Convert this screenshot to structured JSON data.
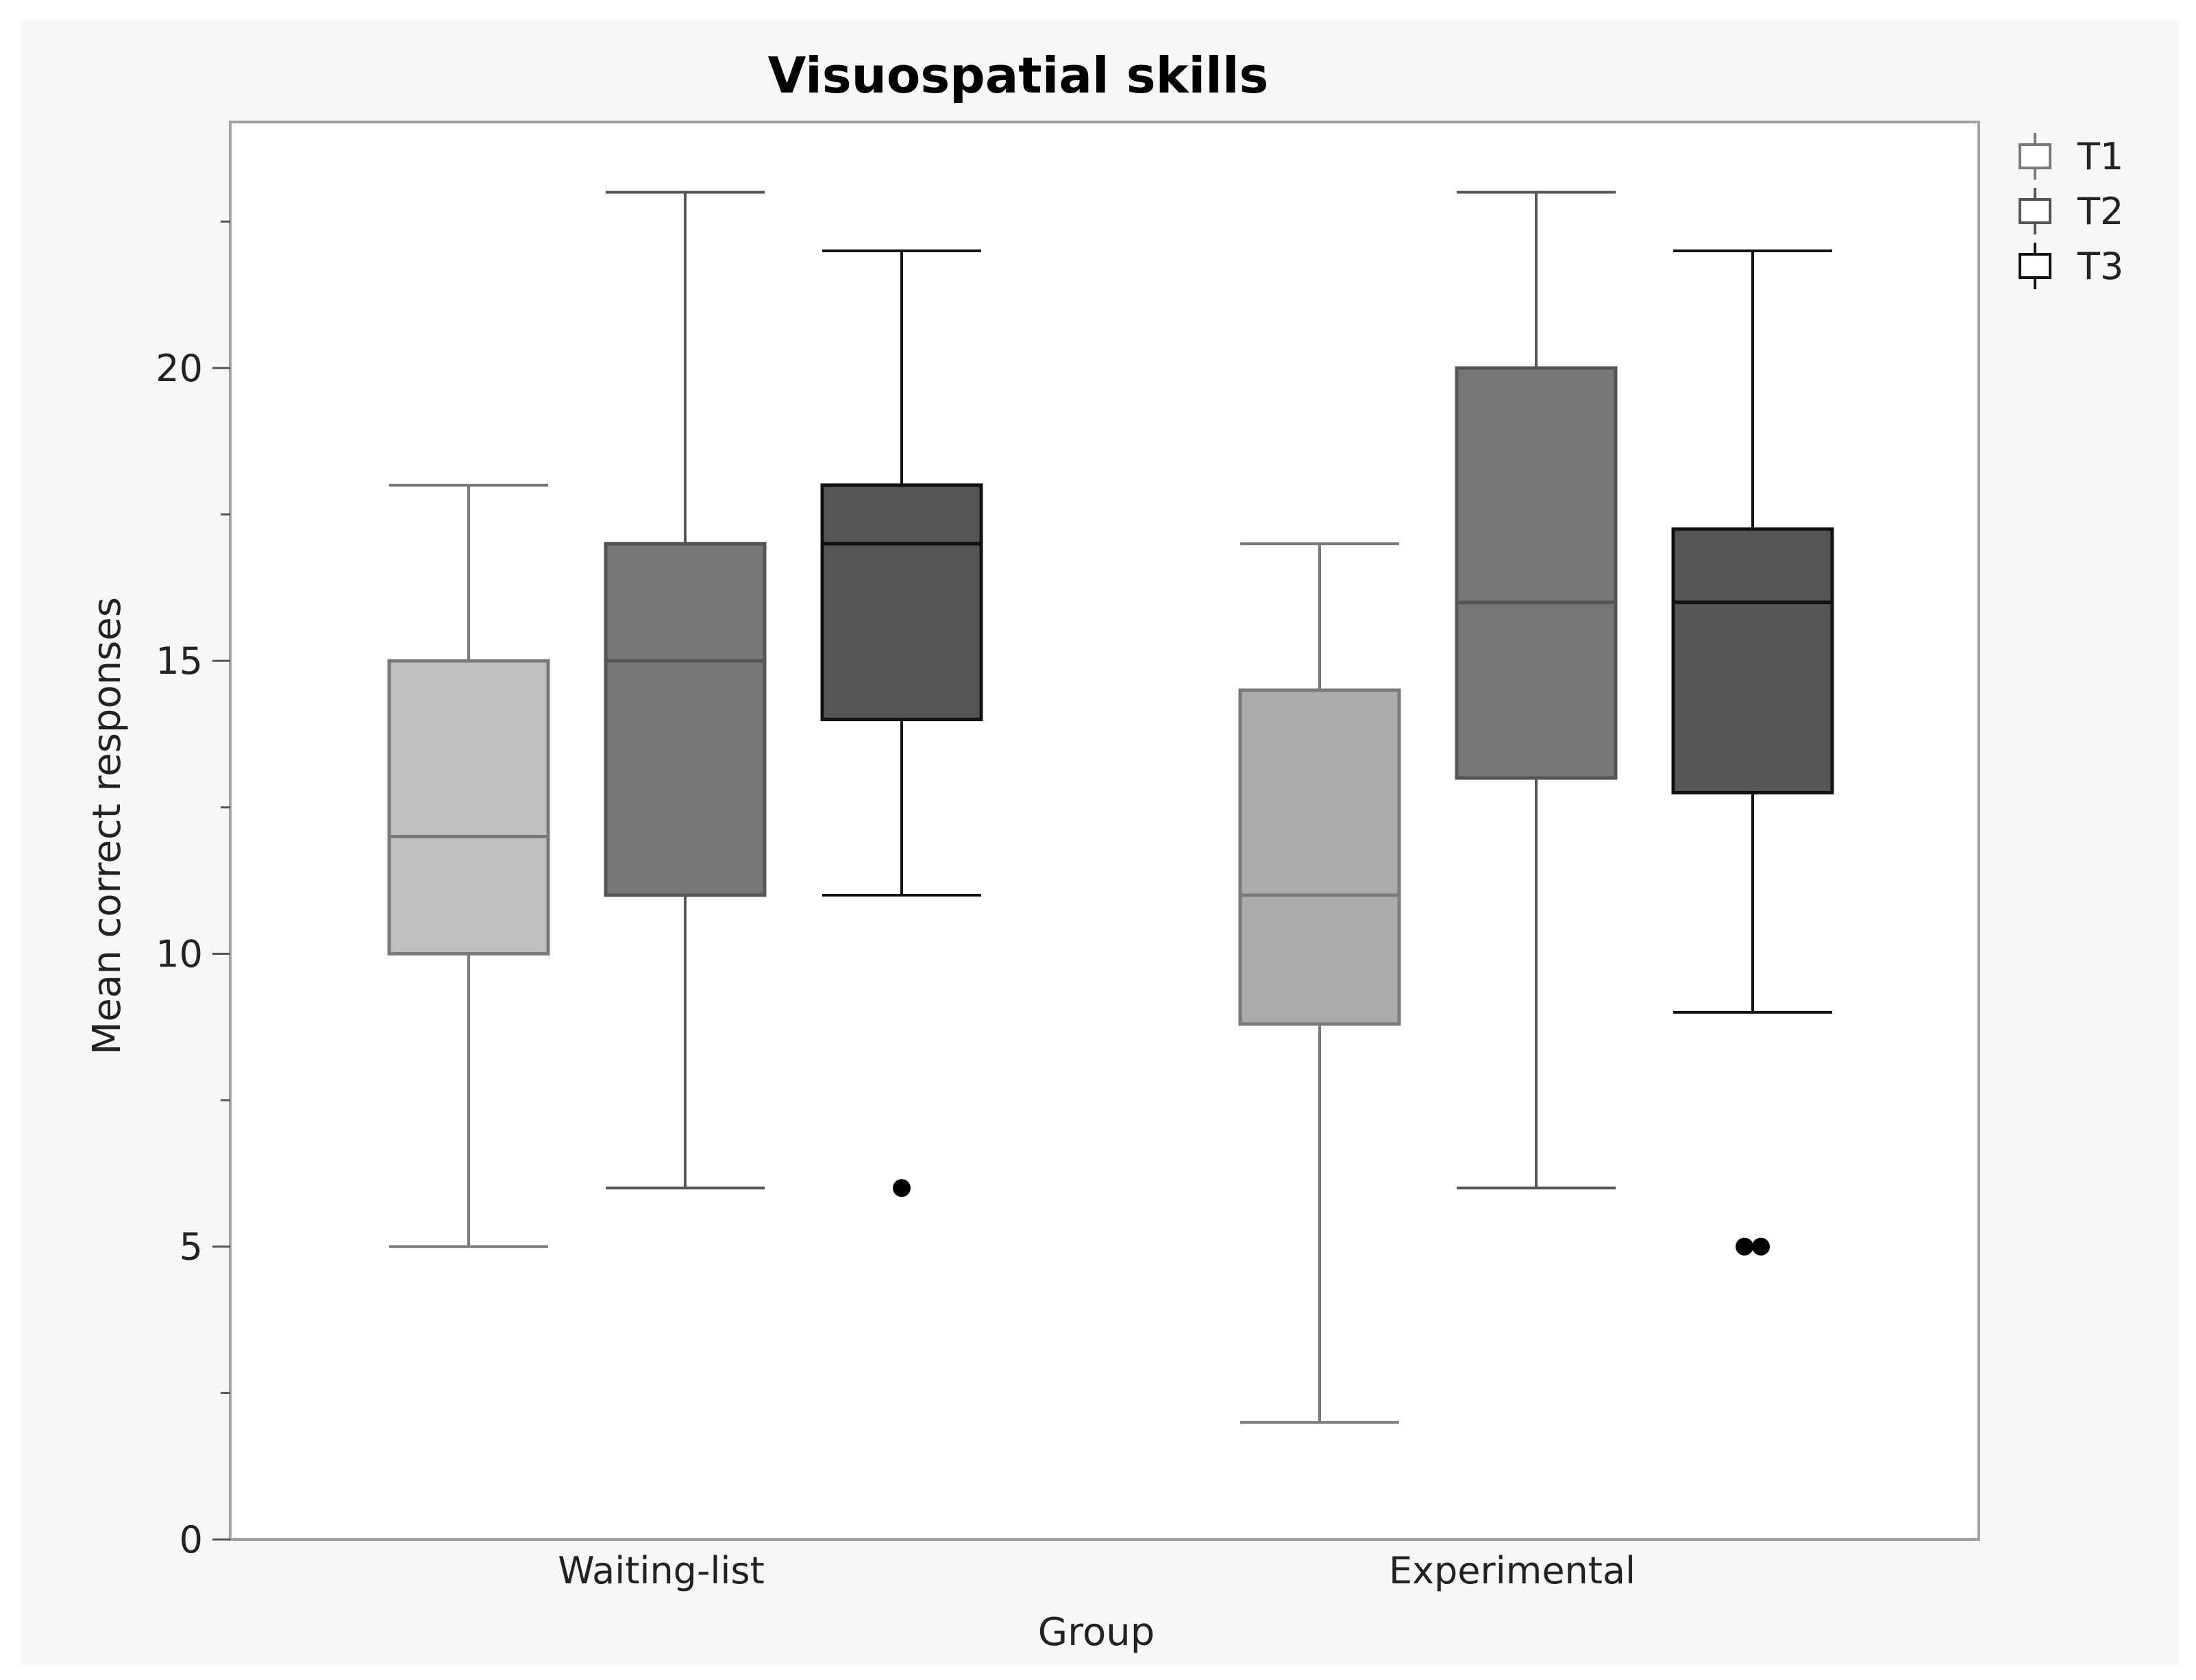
{
  "chart_data": {
    "type": "boxplot",
    "title": "Visuospatial skills",
    "xlabel": "Group",
    "ylabel": "Mean correct responses",
    "ylim": [
      0,
      24.2
    ],
    "yticks": [
      0,
      5,
      10,
      15,
      20
    ],
    "minor_yticks": [
      2.5,
      7.5,
      12.5,
      17.5,
      22.5
    ],
    "categories": [
      "Waiting-list",
      "Experimental"
    ],
    "legend_position": "top-right",
    "series": [
      {
        "name": "T1",
        "fill": "#bfbfbf",
        "fill_alt": "#ababab",
        "stroke": "#7a7a7a",
        "boxes": [
          {
            "whisker_low": 5,
            "q1": 10,
            "median": 12,
            "q3": 15,
            "whisker_high": 18,
            "outliers": []
          },
          {
            "whisker_low": 2,
            "q1": 8.8,
            "median": 11,
            "q3": 14.5,
            "whisker_high": 17,
            "outliers": []
          }
        ]
      },
      {
        "name": "T2",
        "fill": "#777777",
        "fill_alt": "#777777",
        "stroke": "#555555",
        "boxes": [
          {
            "whisker_low": 6,
            "q1": 11,
            "median": 15,
            "q3": 17,
            "whisker_high": 23,
            "outliers": []
          },
          {
            "whisker_low": 6,
            "q1": 13,
            "median": 16,
            "q3": 20,
            "whisker_high": 23,
            "outliers": []
          }
        ]
      },
      {
        "name": "T3",
        "fill": "#555555",
        "fill_alt": "#555555",
        "stroke": "#111111",
        "boxes": [
          {
            "whisker_low": 11,
            "q1": 14,
            "median": 17,
            "q3": 18,
            "whisker_high": 22,
            "outliers": [
              6
            ]
          },
          {
            "whisker_low": 9,
            "q1": 12.75,
            "median": 16,
            "q3": 17.25,
            "whisker_high": 22,
            "outliers": [
              5,
              5
            ]
          }
        ]
      }
    ],
    "colors": {
      "background": "#f7f7f7",
      "plot_background": "#ffffff",
      "frame": "#a0a0a0",
      "outlier": "#000000"
    }
  }
}
